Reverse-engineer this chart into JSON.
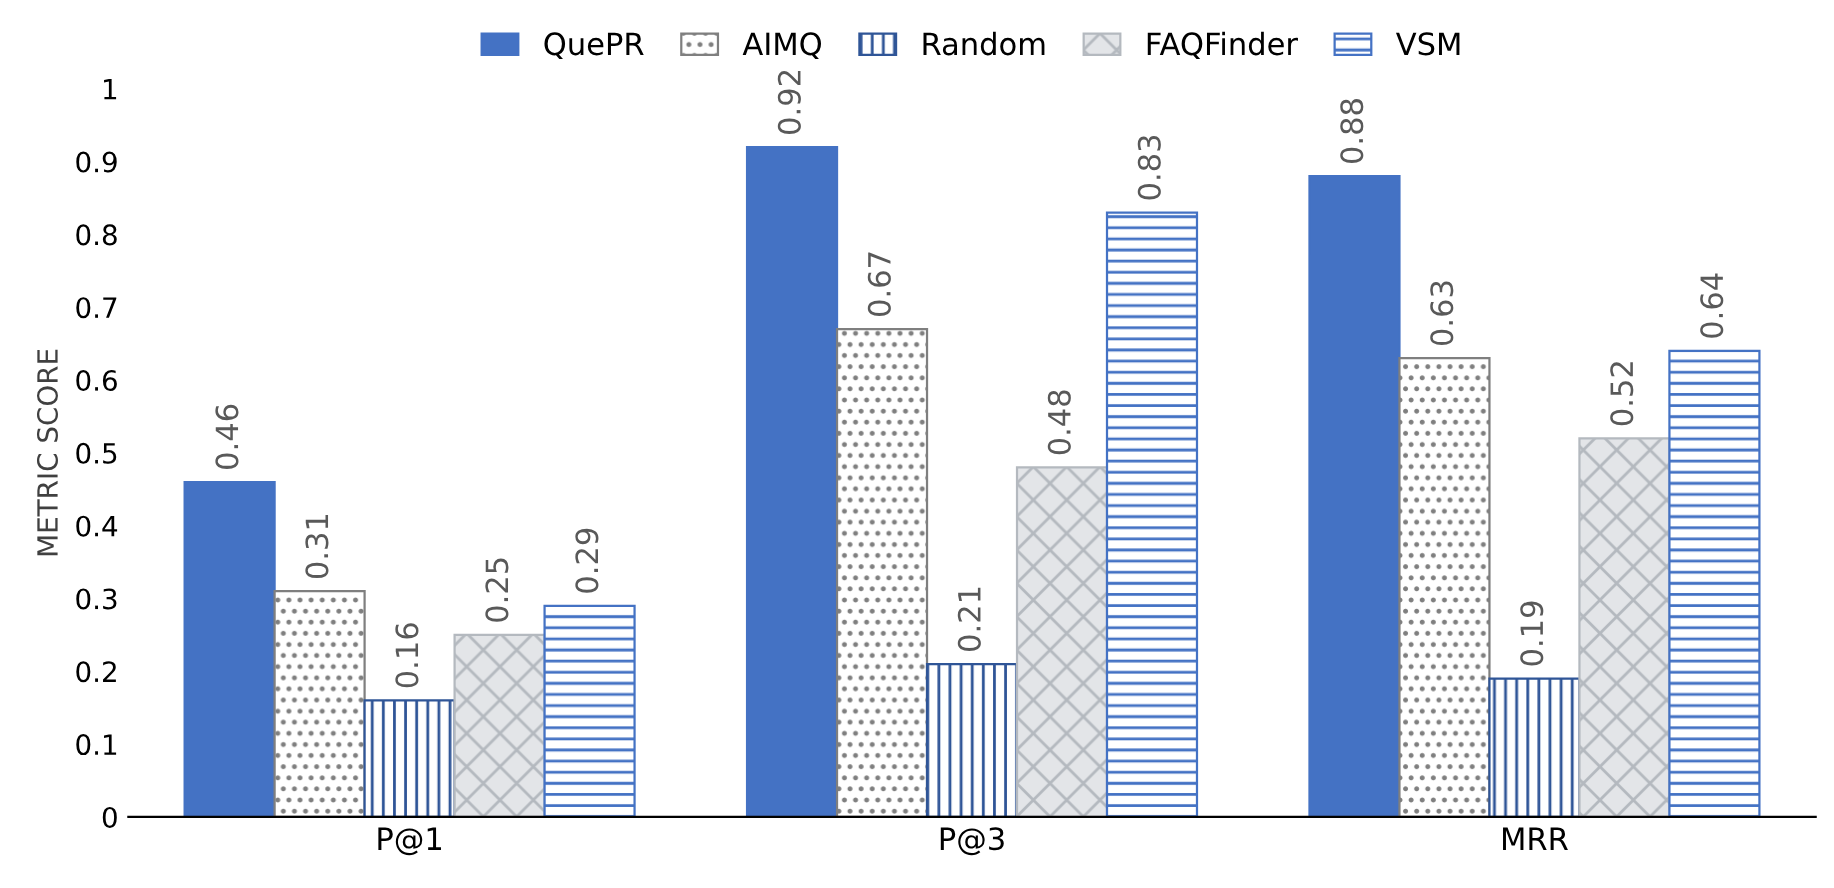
{
  "chart_data": {
    "type": "bar",
    "ylabel": "METRIC SCORE",
    "categories": [
      "P@1",
      "P@3",
      "MRR"
    ],
    "series": [
      {
        "name": "QuePR",
        "color": "#4472c4",
        "values": [
          0.46,
          0.92,
          0.88
        ]
      },
      {
        "name": "AIMQ",
        "color": "#7f7f7f",
        "values": [
          0.31,
          0.67,
          0.63
        ]
      },
      {
        "name": "Random",
        "color": "#2f5597",
        "values": [
          0.16,
          0.21,
          0.19
        ]
      },
      {
        "name": "FAQFinder",
        "color": "#b4b9bf",
        "values": [
          0.25,
          0.48,
          0.52
        ]
      },
      {
        "name": "VSM",
        "color": "#4472c4",
        "values": [
          0.29,
          0.83,
          0.64
        ]
      }
    ],
    "ylim": [
      0,
      1
    ],
    "yticks": [
      0,
      0.1,
      0.2,
      0.3,
      0.4,
      0.5,
      0.6,
      0.7,
      0.8,
      0.9,
      1
    ],
    "data_labels": true,
    "legend": "top",
    "grid": false
  }
}
